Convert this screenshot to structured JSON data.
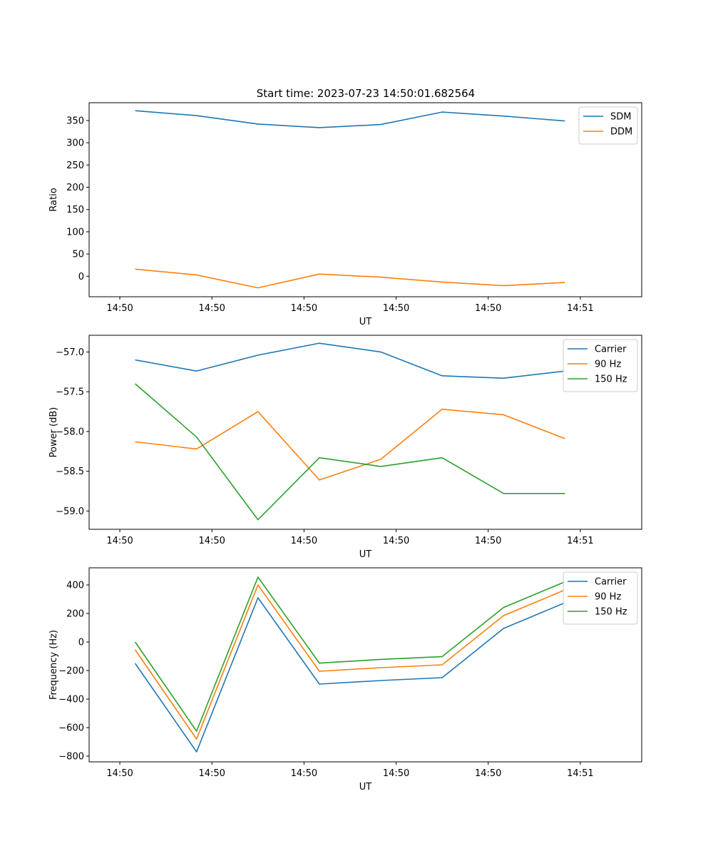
{
  "figure_title": "Start time: 2023-07-23 14:50:01.682564",
  "colors": {
    "c0": "#1f77b4",
    "c1": "#ff7f0e",
    "c2": "#2ca02c"
  },
  "chart_data": [
    {
      "type": "line",
      "title": "Start time: 2023-07-23 14:50:01.682564",
      "xlabel": "UT",
      "ylabel": "Ratio",
      "xlim": [
        -0.5,
        8.5
      ],
      "ylim": [
        -46,
        390
      ],
      "xticks": [
        0,
        1.5,
        3,
        4.5,
        6,
        7.5
      ],
      "xtick_labels": [
        "14:50",
        "14:50",
        "14:50",
        "14:50",
        "14:50",
        "14:51"
      ],
      "yticks": [
        0,
        50,
        100,
        150,
        200,
        250,
        300,
        350
      ],
      "ytick_labels": [
        "0",
        "50",
        "100",
        "150",
        "200",
        "250",
        "300",
        "350"
      ],
      "legend": "top-right",
      "x": [
        0.25,
        1.25,
        2.25,
        3.25,
        4.25,
        5.25,
        6.25,
        7.25
      ],
      "series": [
        {
          "name": "SDM",
          "color_key": "c0",
          "values": [
            372,
            361,
            342,
            334,
            341,
            369,
            360,
            349
          ]
        },
        {
          "name": "DDM",
          "color_key": "c1",
          "values": [
            16,
            3,
            -26,
            5,
            -2,
            -13,
            -21,
            -14
          ]
        }
      ]
    },
    {
      "type": "line",
      "xlabel": "UT",
      "ylabel": "Power (dB)",
      "xlim": [
        -0.5,
        8.5
      ],
      "ylim": [
        -59.23,
        -56.79
      ],
      "xticks": [
        0,
        1.5,
        3,
        4.5,
        6,
        7.5
      ],
      "xtick_labels": [
        "14:50",
        "14:50",
        "14:50",
        "14:50",
        "14:50",
        "14:51"
      ],
      "yticks": [
        -59.0,
        -58.5,
        -58.0,
        -57.5,
        -57.0
      ],
      "ytick_labels": [
        "−59.0",
        "−58.5",
        "−58.0",
        "−57.5",
        "−57.0"
      ],
      "legend": "top-right",
      "x": [
        0.25,
        1.25,
        2.25,
        3.25,
        4.25,
        5.25,
        6.25,
        7.25
      ],
      "series": [
        {
          "name": "Carrier",
          "color_key": "c0",
          "values": [
            -57.1,
            -57.24,
            -57.04,
            -56.89,
            -57.0,
            -57.3,
            -57.33,
            -57.24
          ]
        },
        {
          "name": "90 Hz",
          "color_key": "c1",
          "values": [
            -58.13,
            -58.22,
            -57.75,
            -58.61,
            -58.35,
            -57.72,
            -57.79,
            -58.09
          ]
        },
        {
          "name": "150 Hz",
          "color_key": "c2",
          "values": [
            -57.4,
            -58.07,
            -59.11,
            -58.33,
            -58.44,
            -58.33,
            -58.78,
            -58.78
          ]
        }
      ]
    },
    {
      "type": "line",
      "xlabel": "UT",
      "ylabel": "Frequency (Hz)",
      "xlim": [
        -0.5,
        8.5
      ],
      "ylim": [
        -840,
        520
      ],
      "xticks": [
        0,
        1.5,
        3,
        4.5,
        6,
        7.5
      ],
      "xtick_labels": [
        "14:50",
        "14:50",
        "14:50",
        "14:50",
        "14:50",
        "14:51"
      ],
      "yticks": [
        -800,
        -600,
        -400,
        -200,
        0,
        200,
        400
      ],
      "ytick_labels": [
        "−800",
        "−600",
        "−400",
        "−200",
        "0",
        "200",
        "400"
      ],
      "legend": "top-right",
      "x": [
        0.25,
        1.25,
        2.25,
        3.25,
        4.25,
        5.25,
        6.25,
        7.25
      ],
      "series": [
        {
          "name": "Carrier",
          "color_key": "c0",
          "values": [
            -150,
            -770,
            310,
            -295,
            -270,
            -250,
            95,
            275
          ]
        },
        {
          "name": "90 Hz",
          "color_key": "c1",
          "values": [
            -55,
            -680,
            400,
            -205,
            -180,
            -160,
            185,
            365
          ]
        },
        {
          "name": "150 Hz",
          "color_key": "c2",
          "values": [
            0,
            -625,
            455,
            -148,
            -122,
            -102,
            242,
            422
          ]
        }
      ]
    }
  ]
}
